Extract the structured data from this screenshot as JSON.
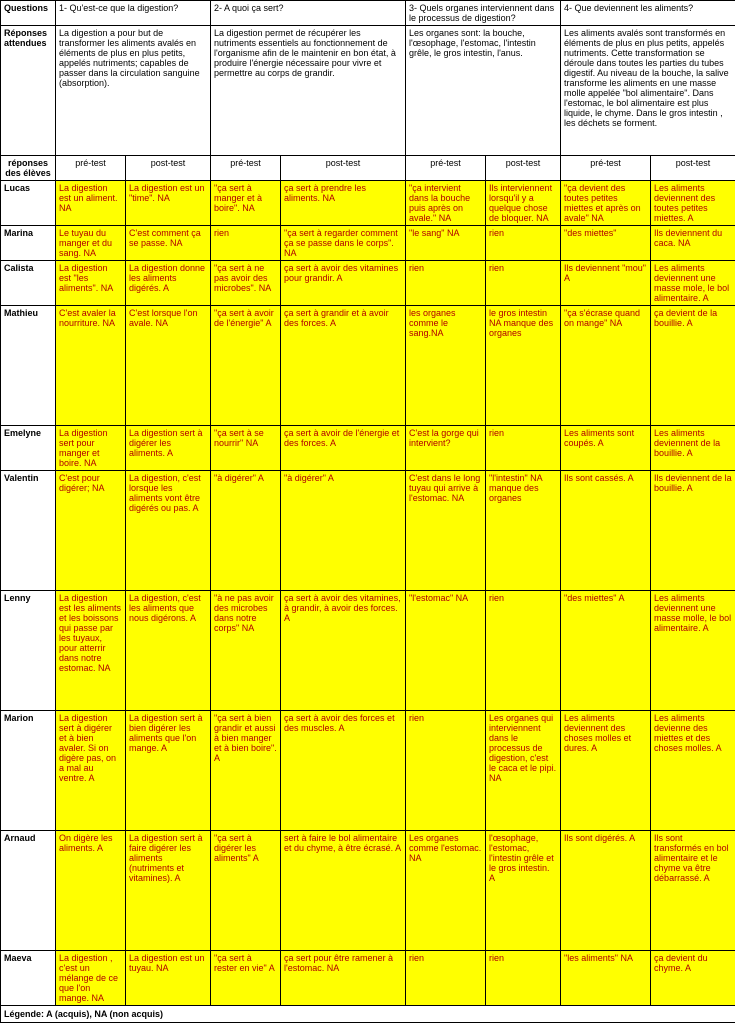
{
  "headers": {
    "questions_label": "Questions",
    "q1": "1- Qu'est-ce que la digestion?",
    "q2": "2- A quoi ça sert?",
    "q3": "3- Quels organes interviennent dans le processus de digestion?",
    "q4": "4- Que deviennent les aliments?",
    "expected_label": "Réponses attendues",
    "a1": "La digestion a pour but de transformer les aliments avalés en éléments de plus en plus petits, appelés nutriments; capables de passer dans la circulation sanguine (absorption).",
    "a2": "La digestion permet de récupérer les nutriments essentiels au fonctionnement de l'organisme afin de le maintenir en bon état, à produire l'énergie nécessaire pour vivre et permettre au corps de grandir.",
    "a3": "Les organes sont: la bouche, l'œsophage, l'estomac, l'intestin grêle, le gros intestin, l'anus.",
    "a4": "Les aliments avalés sont transformés en éléments de plus en plus petits, appelés nutriments. Cette transformation se déroule dans toutes les parties du tubes digestif. Au niveau de la bouche, la salive transforme les aliments en une masse molle appelée \"bol alimentaire\". Dans l'estomac, le bol alimentaire est plus liquide, le chyme. Dans le gros intestin , les déchets se forment.",
    "responses_label": "réponses des élèves",
    "pre": "pré-test",
    "post": "post-test"
  },
  "students": [
    {
      "name": "Lucas",
      "q1pre": "La digestion est un aliment. NA",
      "q1post": "La digestion est un \"time\". NA",
      "q2pre": "\"ça sert à manger et à boire\". NA",
      "q2post": "ça sert à prendre les aliments. NA",
      "q3pre": "\"ça intervient dans la bouche puis après on avale.\" NA",
      "q3post": "Ils interviennent lorsqu'il y a quelque chose de bloquer. NA",
      "q4pre": "\"ça devient des toutes petites miettes et après on avale\" NA",
      "q4post": "Les aliments deviennent des toutes petites miettes. A"
    },
    {
      "name": "Marina",
      "q1pre": "Le tuyau du manger et du sang. NA",
      "q1post": "C'est comment ça se passe. NA",
      "q2pre": "rien",
      "q2post": "\"ça sert à regarder comment ça se passe dans le corps\". NA",
      "q3pre": "\"le sang\" NA",
      "q3post": "rien",
      "q4pre": "\"des miettes\"",
      "q4post": "Ils deviennent du caca. NA"
    },
    {
      "name": "Calista",
      "q1pre": "La digestion est \"les aliments\". NA",
      "q1post": "La digestion donne les aliments digérés. A",
      "q2pre": "\"ça sert à ne pas avoir des microbes\". NA",
      "q2post": "ça sert à avoir des vitamines pour grandir. A",
      "q3pre": "rien",
      "q3post": "rien",
      "q4pre": "Ils deviennent \"mou\" A",
      "q4post": "Les aliments deviennent une masse mole, le bol alimentaire. A"
    },
    {
      "name": "Mathieu",
      "q1pre": "C'est avaler la nourriture. NA",
      "q1post": "C'est lorsque l'on avale. NA",
      "q2pre": "\"ça sert à avoir de l'énergie\" A",
      "q2post": "ça sert à grandir et à avoir des forces. A",
      "q3pre": "les organes comme le sang.NA",
      "q3post": "le gros intestin NA manque des organes",
      "q4pre": "\"ça s'écrase quand on mange\" NA",
      "q4post": "ça devient de la bouillie. A",
      "tall": true
    },
    {
      "name": "Emelyne",
      "q1pre": "La digestion sert pour manger et boire. NA",
      "q1post": "La digestion sert à digérer les aliments. A",
      "q2pre": "\"ça sert à se nourrir\"  NA",
      "q2post": "ça sert à avoir de l'énergie et des forces. A",
      "q3pre": "C'est la gorge qui intervient?",
      "q3post": "rien",
      "q4pre": "Les aliments sont coupés. A",
      "q4post": "Les aliments deviennent de la bouillie. A"
    },
    {
      "name": "Valentin",
      "q1pre": "C'est pour digérer; NA",
      "q1post": "La digestion, c'est lorsque les aliments vont être digérés ou pas. A",
      "q2pre": "\"à digérer\" A",
      "q2post": "\"à digérer\" A",
      "q3pre": "C'est dans le long tuyau qui arrive à l'estomac. NA",
      "q3post": "\"l'intestin\" NA manque des organes",
      "q4pre": "Ils sont cassés. A",
      "q4post": "Ils deviennent de la bouillie. A",
      "tall": true
    },
    {
      "name": "Lenny",
      "q1pre": "La digestion est les aliments et les boissons qui passe par les tuyaux, pour atterrir dans notre estomac. NA",
      "q1post": "La digestion, c'est les aliments que nous digérons. A",
      "q2pre": "\"à ne pas avoir des microbes dans notre corps\" NA",
      "q2post": "ça sert à avoir des vitamines, à grandir, à avoir des forces. A",
      "q3pre": "\"l'estomac\" NA",
      "q3post": "rien",
      "q4pre": "\"des miettes\" A",
      "q4post": "Les aliments deviennent une masse molle, le bol alimentaire. A",
      "tall": true
    },
    {
      "name": "Marion",
      "q1pre": "La digestion sert à digérer et à bien avaler. Si on digère pas, on a mal au ventre. A",
      "q1post": "La digestion sert à bien digérer les aliments que l'on mange. A",
      "q2pre": "\"ça sert à bien grandir et aussi à bien manger et à bien boire\". A",
      "q2post": "ça sert à avoir des forces et des muscles. A",
      "q3pre": "rien",
      "q3post": "Les organes qui interviennent dans le processus de digestion, c'est le caca et le pipi. NA",
      "q4pre": "Les aliments deviennent des choses molles et dures. A",
      "q4post": "Les aliments devienne des miettes et des choses molles. A",
      "tall": true
    },
    {
      "name": "Arnaud",
      "q1pre": "On digère les aliments. A",
      "q1post": "La digestion sert à faire digérer les aliments (nutriments et vitamines). A",
      "q2pre": "\"ça sert à digérer les aliments\" A",
      "q2post": " sert à faire le bol alimentaire et du chyme, à être écrasé. A",
      "q3pre": "Les organes comme l'estomac. NA",
      "q3post": "l'œsophage, l'estomac, l'intestin grêle et le gros intestin. A",
      "q4pre": "Ils sont digérés. A",
      "q4post": "Ils sont transformés en bol alimentaire et le chyme va être débarrassé. A",
      "tall": true
    },
    {
      "name": "Maeva",
      "q1pre": "La digestion , c'est un mélange de ce que l'on mange. NA",
      "q1post": "La digestion est un tuyau. NA",
      "q2pre": "\"ça sert à rester en vie\" A",
      "q2post": "ça sert pour être ramener à l'estomac. NA",
      "q3pre": "rien",
      "q3post": "rien",
      "q4pre": "\"les aliments\" NA",
      "q4post": "ça devient du chyme. A"
    }
  ],
  "legend": "Légende: A (acquis), NA (non acquis)",
  "colors": {
    "highlight_bg": "#ffff00",
    "student_text": "#b00000",
    "border": "#000000",
    "page_bg": "#ffffff"
  }
}
